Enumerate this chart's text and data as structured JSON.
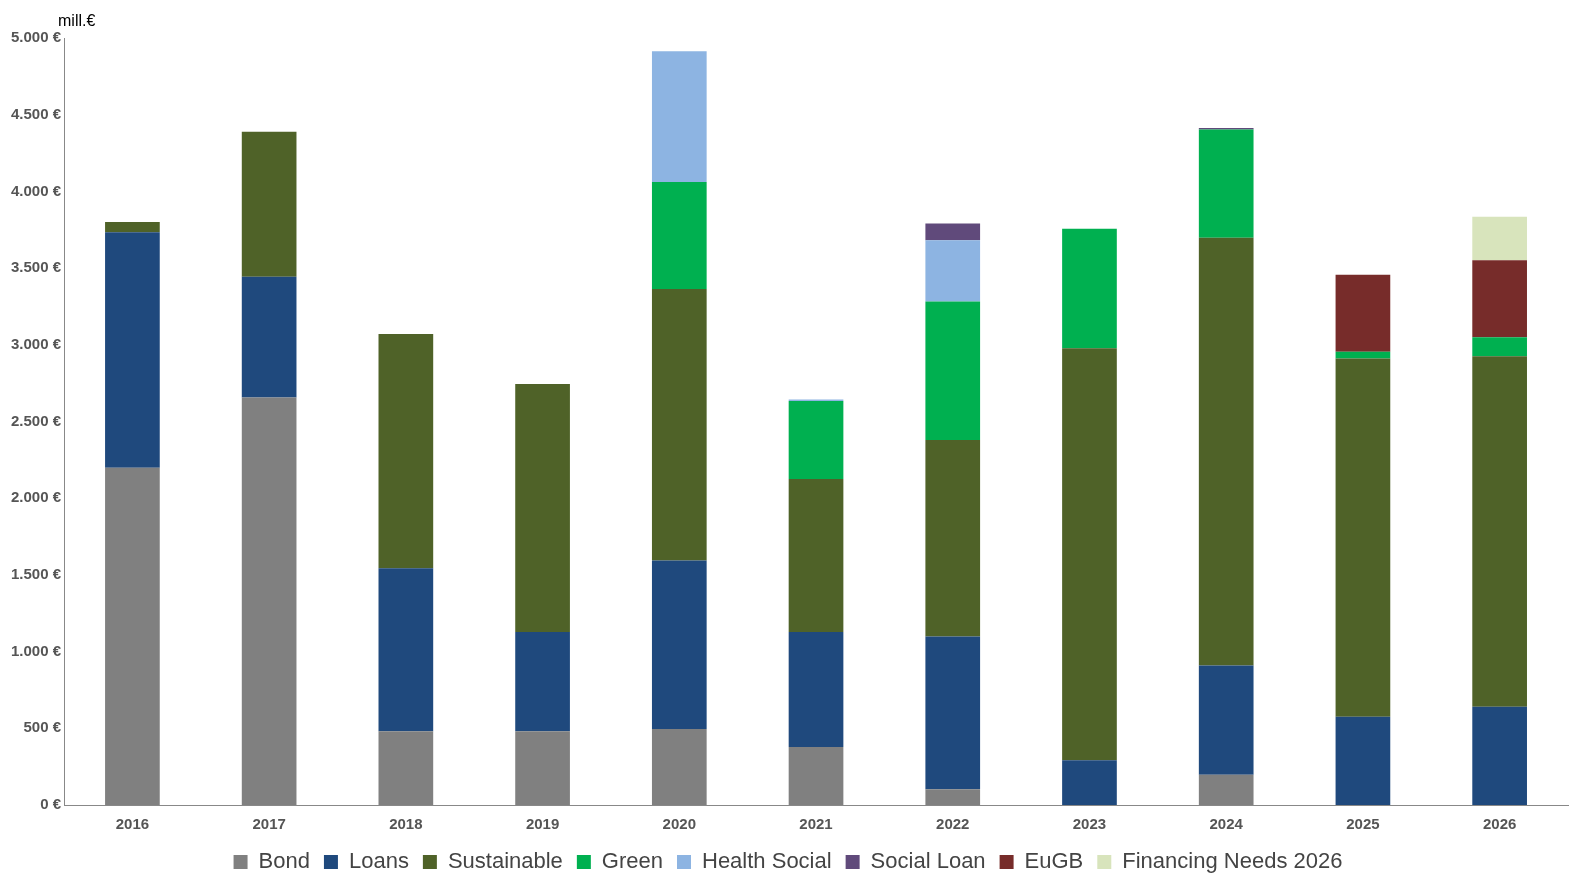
{
  "chart_data": {
    "type": "bar",
    "stacked": true,
    "ylabel": "mill.€",
    "categories": [
      "2016",
      "2017",
      "2018",
      "2019",
      "2020",
      "2021",
      "2022",
      "2023",
      "2024",
      "2025",
      "2026"
    ],
    "series": [
      {
        "name": "Bond",
        "color": "#808080",
        "values": [
          2198,
          2657,
          480,
          480,
          495,
          378,
          102,
          0,
          197,
          0,
          0
        ]
      },
      {
        "name": "Loans",
        "color": "#1f497d",
        "values": [
          1536,
          786,
          1063,
          648,
          1099,
          750,
          997,
          291,
          713,
          575,
          640
        ]
      },
      {
        "name": "Sustainable",
        "color": "#4f6228",
        "values": [
          66,
          946,
          1528,
          1616,
          1769,
          997,
          1281,
          2686,
          2788,
          2336,
          2285
        ]
      },
      {
        "name": "Green",
        "color": "#00b050",
        "values": [
          0,
          0,
          0,
          0,
          699,
          509,
          902,
          779,
          706,
          44,
          124
        ]
      },
      {
        "name": "Health Social",
        "color": "#8db4e2",
        "values": [
          0,
          0,
          0,
          0,
          852,
          10,
          400,
          0,
          0,
          0,
          0
        ]
      },
      {
        "name": "Social Loan",
        "color": "#604a7b",
        "values": [
          0,
          0,
          0,
          0,
          0,
          0,
          109,
          0,
          10,
          0,
          0
        ]
      },
      {
        "name": "EuGB",
        "color": "#772c2a",
        "values": [
          0,
          0,
          0,
          0,
          0,
          0,
          0,
          0,
          0,
          502,
          502
        ]
      },
      {
        "name": "Financing Needs 2026",
        "color": "#d8e4bc",
        "values": [
          0,
          0,
          0,
          0,
          0,
          0,
          0,
          0,
          0,
          null,
          284
        ]
      }
    ],
    "ylim": [
      0,
      5000
    ],
    "yticks": [
      {
        "value": 0,
        "label": "0 €"
      },
      {
        "value": 500,
        "label": "500 €"
      },
      {
        "value": 1000,
        "label": "1.000 €"
      },
      {
        "value": 1500,
        "label": "1.500 €"
      },
      {
        "value": 2000,
        "label": "2.000 €"
      },
      {
        "value": 2500,
        "label": "2.500 €"
      },
      {
        "value": 3000,
        "label": "3.000 €"
      },
      {
        "value": 3500,
        "label": "3.500 €"
      },
      {
        "value": 4000,
        "label": "4.000 €"
      },
      {
        "value": 4500,
        "label": "4.500 €"
      },
      {
        "value": 5000,
        "label": "5.000 €"
      }
    ],
    "grid": false,
    "legend": "bottom"
  }
}
